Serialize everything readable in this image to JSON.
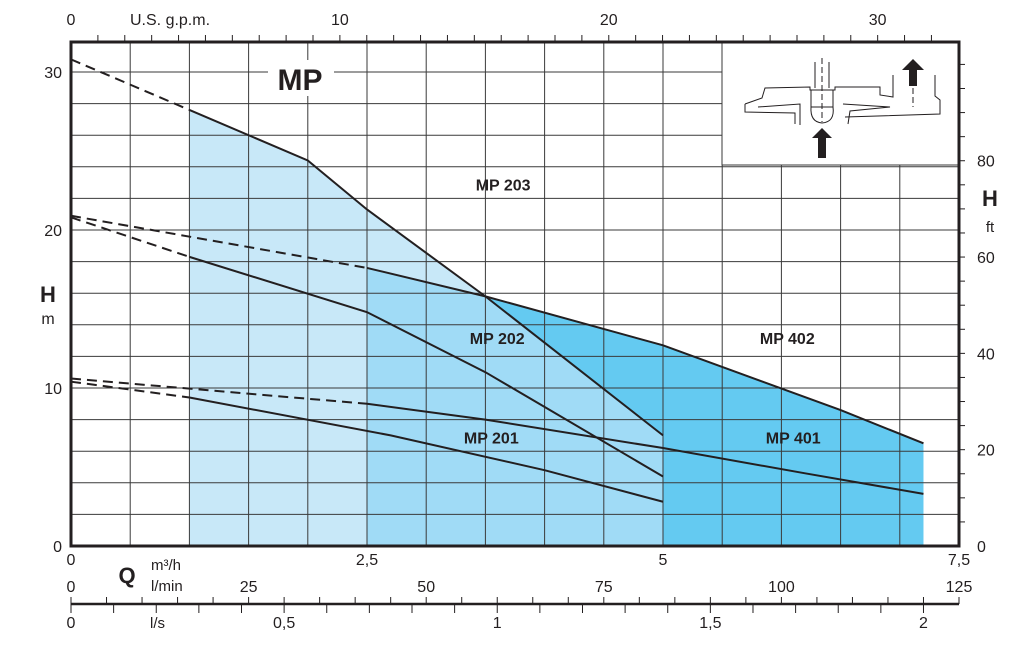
{
  "chart_data": {
    "type": "line",
    "title": "MP",
    "xlabel": "Q",
    "ylabel": "H",
    "x_unit_primary": "m³/h",
    "y_unit_primary": "m",
    "y_unit_secondary": "ft",
    "x_unit_top": "U.S. g.p.m.",
    "x_unit_lmin": "l/min",
    "x_unit_ls": "l/s",
    "xlim": [
      0,
      7.5
    ],
    "ylim": [
      0,
      32
    ],
    "grid": true,
    "x_ticks": [
      {
        "v": 0,
        "label": "0"
      },
      {
        "v": 2.5,
        "label": "2,5"
      },
      {
        "v": 5,
        "label": "5"
      },
      {
        "v": 7.5,
        "label": "7,5"
      }
    ],
    "y_ticks": [
      {
        "v": 0,
        "label": "0"
      },
      {
        "v": 10,
        "label": "10"
      },
      {
        "v": 20,
        "label": "20"
      },
      {
        "v": 30,
        "label": "30"
      }
    ],
    "ft_ticks": [
      {
        "v": 0,
        "label": "0"
      },
      {
        "v": 20,
        "label": "20"
      },
      {
        "v": 40,
        "label": "40"
      },
      {
        "v": 60,
        "label": "60"
      },
      {
        "v": 80,
        "label": "80"
      }
    ],
    "gpm_ticks": [
      {
        "v": 0,
        "label": "0"
      },
      {
        "v": 10,
        "label": "10"
      },
      {
        "v": 20,
        "label": "20"
      },
      {
        "v": 30,
        "label": "30"
      }
    ],
    "lmin_ticks": [
      {
        "v": 0,
        "label": "0"
      },
      {
        "v": 25,
        "label": "25"
      },
      {
        "v": 50,
        "label": "50"
      },
      {
        "v": 75,
        "label": "75"
      },
      {
        "v": 100,
        "label": "100"
      },
      {
        "v": 125,
        "label": "125"
      }
    ],
    "ls_ticks": [
      {
        "v": 0,
        "label": "0"
      },
      {
        "v": 0.5,
        "label": "0,5"
      },
      {
        "v": 1,
        "label": "1"
      },
      {
        "v": 1.5,
        "label": "1,5"
      },
      {
        "v": 2,
        "label": "2"
      }
    ],
    "series": [
      {
        "name": "MP 203",
        "dashed": [
          [
            0,
            30.8
          ],
          [
            1.0,
            27.6
          ]
        ],
        "solid": [
          [
            1.0,
            27.6
          ],
          [
            2.0,
            24.4
          ],
          [
            2.5,
            21.3
          ],
          [
            3.5,
            15.8
          ],
          [
            5.0,
            7.0
          ]
        ],
        "label_at": [
          3.65,
          22.5
        ]
      },
      {
        "name": "MP 202",
        "dashed": [
          [
            0,
            20.8
          ],
          [
            1.0,
            18.3
          ]
        ],
        "solid": [
          [
            1.0,
            18.3
          ],
          [
            2.5,
            14.8
          ],
          [
            3.5,
            11.0
          ],
          [
            5.0,
            4.4
          ]
        ],
        "label_at": [
          3.6,
          12.8
        ]
      },
      {
        "name": "MP 402",
        "dashed": [
          [
            0,
            20.9
          ],
          [
            2.5,
            17.6
          ]
        ],
        "solid": [
          [
            2.5,
            17.6
          ],
          [
            3.5,
            15.8
          ],
          [
            5.0,
            12.7
          ],
          [
            6.5,
            8.6
          ],
          [
            7.2,
            6.5
          ]
        ],
        "label_at": [
          6.05,
          12.8
        ]
      },
      {
        "name": "MP 401",
        "dashed": [
          [
            0,
            10.6
          ],
          [
            2.5,
            9.0
          ]
        ],
        "solid": [
          [
            2.5,
            9.0
          ],
          [
            3.5,
            8.0
          ],
          [
            5.0,
            6.2
          ],
          [
            6.2,
            4.6
          ],
          [
            7.2,
            3.3
          ]
        ],
        "label_at": [
          6.1,
          6.5
        ]
      },
      {
        "name": "MP 201",
        "dashed": [
          [
            0,
            10.4
          ],
          [
            1.0,
            9.4
          ]
        ],
        "solid": [
          [
            1.0,
            9.4
          ],
          [
            2.7,
            7.0
          ],
          [
            4.0,
            4.8
          ],
          [
            5.0,
            2.8
          ]
        ],
        "label_at": [
          3.55,
          6.5
        ]
      }
    ],
    "colors": {
      "light": "#c8e8f8",
      "medium": "#a0dbf6",
      "dark": "#64caf1",
      "line": "#231f20",
      "grid": "#3a3a3a"
    }
  }
}
